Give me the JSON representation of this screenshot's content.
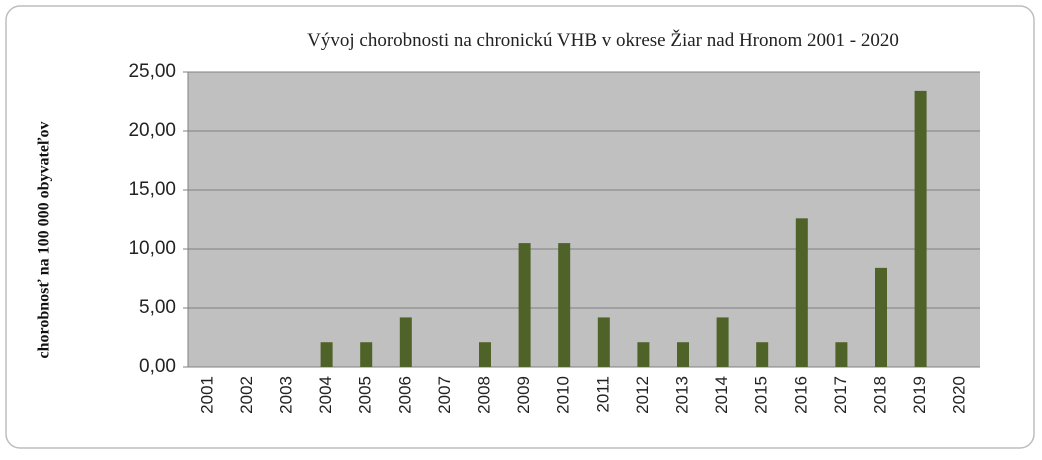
{
  "chart_data": {
    "type": "bar",
    "title": "Vývoj chorobnosti na chronickú VHB v okrese Žiar nad Hronom 2001 - 2020",
    "y_label": "chorobnosť na 100 000 obyvateľov",
    "categories": [
      "2001",
      "2002",
      "2003",
      "2004",
      "2005",
      "2006",
      "2007",
      "2008",
      "2009",
      "2010",
      "2011",
      "2012",
      "2013",
      "2014",
      "2015",
      "2016",
      "2017",
      "2018",
      "2019",
      "2020"
    ],
    "values": [
      0,
      0,
      0,
      2.1,
      2.1,
      4.2,
      0,
      2.1,
      10.5,
      10.5,
      4.2,
      2.1,
      2.1,
      4.2,
      2.1,
      12.6,
      2.1,
      8.4,
      23.4,
      0
    ],
    "color": "#4f6228",
    "ylim": [
      0,
      25
    ],
    "yticks": [
      {
        "value": 0,
        "label": "0,00"
      },
      {
        "value": 5,
        "label": "5,00"
      },
      {
        "value": 10,
        "label": "10,00"
      },
      {
        "value": 15,
        "label": "15,00"
      },
      {
        "value": 20,
        "label": "20,00"
      },
      {
        "value": 25,
        "label": "25,00"
      }
    ],
    "grid": true
  }
}
